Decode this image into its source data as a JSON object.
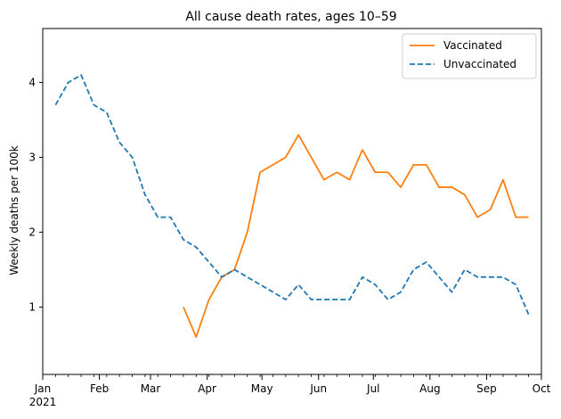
{
  "chart_data": {
    "type": "line",
    "title": "All cause death rates, ages 10–59",
    "xlabel": "",
    "ylabel": "Weekly deaths per 100k",
    "x_unit": "date",
    "xlim": [
      "2021-01-01",
      "2021-10-01"
    ],
    "ylim": [
      0.1,
      4.72
    ],
    "x_ticks": [
      {
        "date": "2021-01-01",
        "label": "Jan",
        "sublabel": "2021"
      },
      {
        "date": "2021-02-01",
        "label": "Feb"
      },
      {
        "date": "2021-03-01",
        "label": "Mar"
      },
      {
        "date": "2021-04-01",
        "label": "Apr"
      },
      {
        "date": "2021-05-01",
        "label": "May"
      },
      {
        "date": "2021-06-01",
        "label": "Jun"
      },
      {
        "date": "2021-07-01",
        "label": "Jul"
      },
      {
        "date": "2021-08-01",
        "label": "Aug"
      },
      {
        "date": "2021-09-01",
        "label": "Sep"
      },
      {
        "date": "2021-10-01",
        "label": "Oct"
      }
    ],
    "y_ticks": [
      1,
      2,
      3,
      4
    ],
    "grid": false,
    "legend_position": "top-right",
    "series": [
      {
        "name": "Vaccinated",
        "color": "#ff7f0e",
        "style": "solid",
        "points": [
          {
            "x": "2021-03-19",
            "y": 1.0
          },
          {
            "x": "2021-03-26",
            "y": 0.6
          },
          {
            "x": "2021-04-02",
            "y": 1.1
          },
          {
            "x": "2021-04-09",
            "y": 1.4
          },
          {
            "x": "2021-04-16",
            "y": 1.5
          },
          {
            "x": "2021-04-23",
            "y": 2.0
          },
          {
            "x": "2021-04-30",
            "y": 2.8
          },
          {
            "x": "2021-05-07",
            "y": 2.9
          },
          {
            "x": "2021-05-14",
            "y": 3.0
          },
          {
            "x": "2021-05-21",
            "y": 3.3
          },
          {
            "x": "2021-05-28",
            "y": 3.0
          },
          {
            "x": "2021-06-04",
            "y": 2.7
          },
          {
            "x": "2021-06-11",
            "y": 2.8
          },
          {
            "x": "2021-06-18",
            "y": 2.7
          },
          {
            "x": "2021-06-25",
            "y": 3.1
          },
          {
            "x": "2021-07-02",
            "y": 2.8
          },
          {
            "x": "2021-07-09",
            "y": 2.8
          },
          {
            "x": "2021-07-16",
            "y": 2.6
          },
          {
            "x": "2021-07-23",
            "y": 2.9
          },
          {
            "x": "2021-07-30",
            "y": 2.9
          },
          {
            "x": "2021-08-06",
            "y": 2.6
          },
          {
            "x": "2021-08-13",
            "y": 2.6
          },
          {
            "x": "2021-08-20",
            "y": 2.5
          },
          {
            "x": "2021-08-27",
            "y": 2.2
          },
          {
            "x": "2021-09-03",
            "y": 2.3
          },
          {
            "x": "2021-09-10",
            "y": 2.7
          },
          {
            "x": "2021-09-17",
            "y": 2.2
          },
          {
            "x": "2021-09-24",
            "y": 2.2
          }
        ]
      },
      {
        "name": "Unvaccinated",
        "color": "#1f77b4",
        "style": "dashed",
        "points": [
          {
            "x": "2021-01-08",
            "y": 3.7
          },
          {
            "x": "2021-01-15",
            "y": 4.0
          },
          {
            "x": "2021-01-22",
            "y": 4.1
          },
          {
            "x": "2021-01-29",
            "y": 3.7
          },
          {
            "x": "2021-02-05",
            "y": 3.6
          },
          {
            "x": "2021-02-12",
            "y": 3.2
          },
          {
            "x": "2021-02-19",
            "y": 3.0
          },
          {
            "x": "2021-02-26",
            "y": 2.5
          },
          {
            "x": "2021-03-05",
            "y": 2.2
          },
          {
            "x": "2021-03-12",
            "y": 2.2
          },
          {
            "x": "2021-03-19",
            "y": 1.9
          },
          {
            "x": "2021-03-26",
            "y": 1.8
          },
          {
            "x": "2021-04-02",
            "y": 1.6
          },
          {
            "x": "2021-04-09",
            "y": 1.4
          },
          {
            "x": "2021-04-16",
            "y": 1.5
          },
          {
            "x": "2021-04-23",
            "y": 1.4
          },
          {
            "x": "2021-04-30",
            "y": 1.3
          },
          {
            "x": "2021-05-07",
            "y": 1.2
          },
          {
            "x": "2021-05-14",
            "y": 1.1
          },
          {
            "x": "2021-05-21",
            "y": 1.3
          },
          {
            "x": "2021-05-28",
            "y": 1.1
          },
          {
            "x": "2021-06-04",
            "y": 1.1
          },
          {
            "x": "2021-06-11",
            "y": 1.1
          },
          {
            "x": "2021-06-18",
            "y": 1.1
          },
          {
            "x": "2021-06-25",
            "y": 1.4
          },
          {
            "x": "2021-07-02",
            "y": 1.3
          },
          {
            "x": "2021-07-09",
            "y": 1.1
          },
          {
            "x": "2021-07-16",
            "y": 1.2
          },
          {
            "x": "2021-07-23",
            "y": 1.5
          },
          {
            "x": "2021-07-30",
            "y": 1.6
          },
          {
            "x": "2021-08-06",
            "y": 1.4
          },
          {
            "x": "2021-08-13",
            "y": 1.2
          },
          {
            "x": "2021-08-20",
            "y": 1.5
          },
          {
            "x": "2021-08-27",
            "y": 1.4
          },
          {
            "x": "2021-09-03",
            "y": 1.4
          },
          {
            "x": "2021-09-10",
            "y": 1.4
          },
          {
            "x": "2021-09-17",
            "y": 1.3
          },
          {
            "x": "2021-09-24",
            "y": 0.9
          }
        ]
      }
    ]
  }
}
